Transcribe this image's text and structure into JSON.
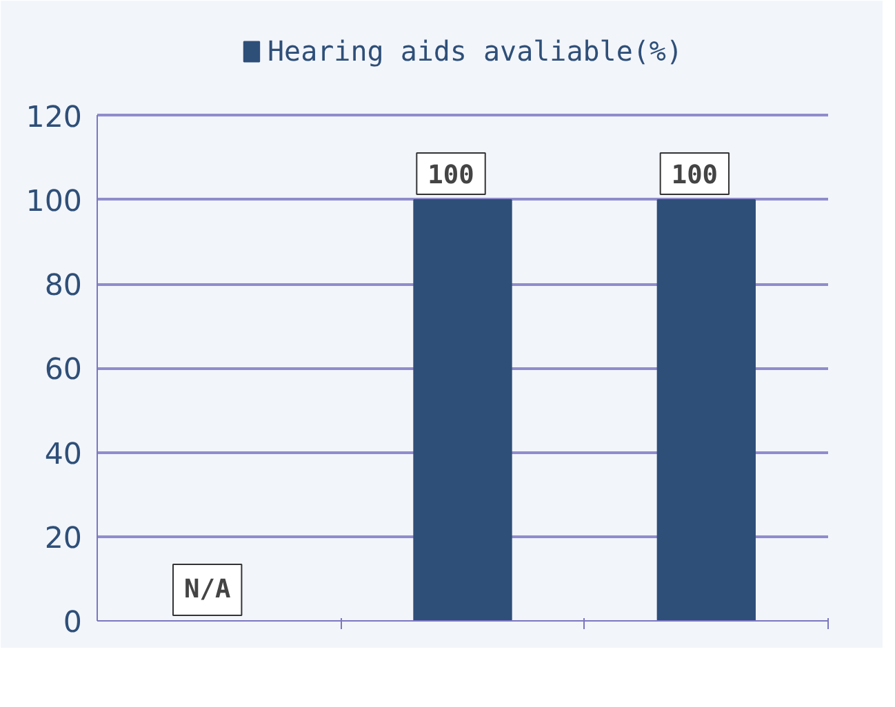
{
  "chart_data": {
    "type": "bar",
    "categories": [
      null,
      null,
      null
    ],
    "series": [
      {
        "name": "Hearing aids avaliable(%)",
        "color": "#2e4f78",
        "values": [
          null,
          100,
          100
        ],
        "value_labels": [
          "N/A",
          "100",
          "100"
        ]
      }
    ],
    "ylim": [
      0,
      120
    ],
    "yticks": [
      0,
      20,
      40,
      60,
      80,
      100,
      120
    ],
    "grid": "y",
    "legend": "top",
    "tick_labels": "y"
  }
}
